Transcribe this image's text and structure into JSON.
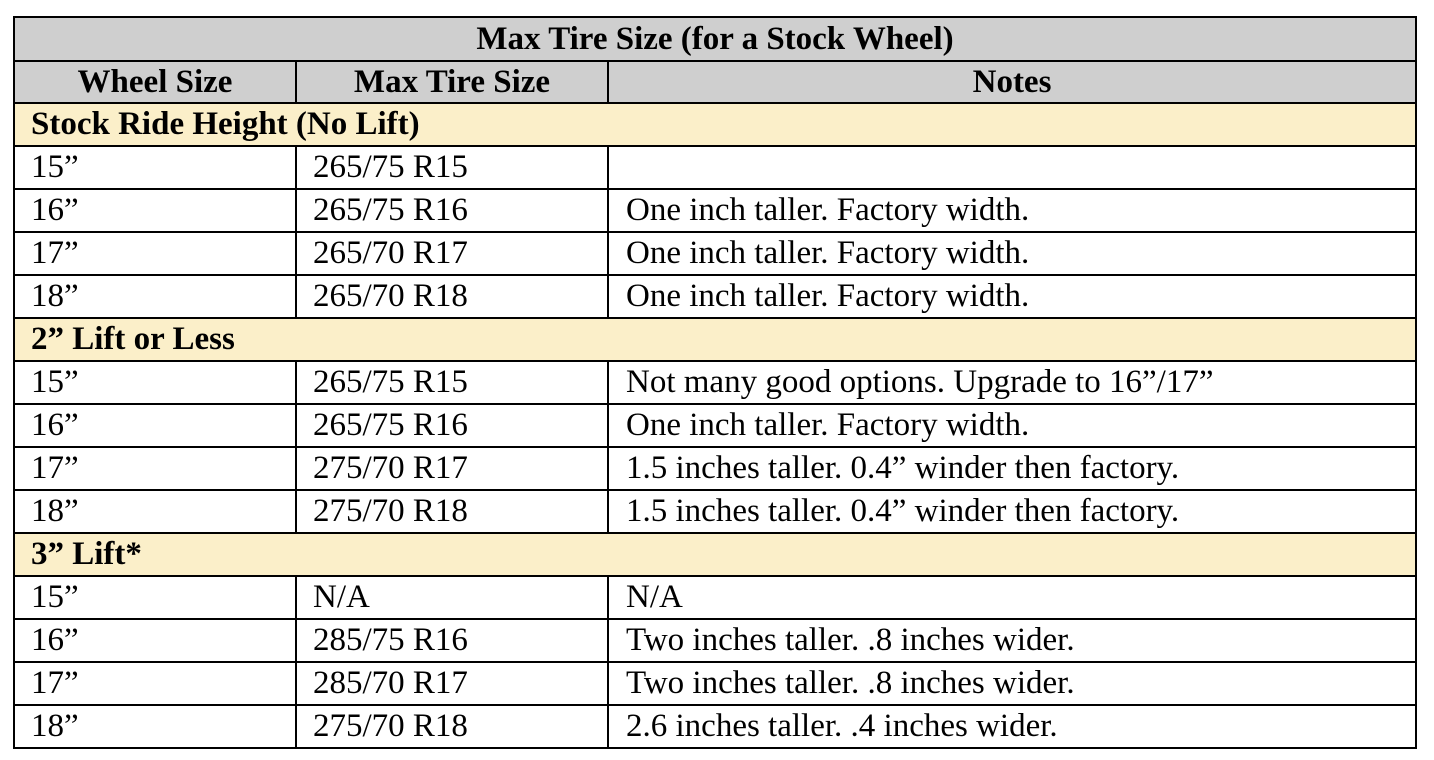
{
  "table": {
    "title": "Max Tire Size (for a Stock Wheel)",
    "headers": [
      "Wheel Size",
      "Max Tire Size",
      "Notes"
    ],
    "sections": [
      {
        "label": "Stock Ride Height (No Lift)",
        "rows": [
          {
            "wheel": "15”",
            "tire": "265/75 R15",
            "notes": ""
          },
          {
            "wheel": "16”",
            "tire": "265/75 R16",
            "notes": "One inch taller. Factory width."
          },
          {
            "wheel": "17”",
            "tire": "265/70 R17",
            "notes": "One inch taller. Factory width."
          },
          {
            "wheel": "18”",
            "tire": "265/70 R18",
            "notes": "One inch taller. Factory width."
          }
        ]
      },
      {
        "label": "2” Lift or Less",
        "rows": [
          {
            "wheel": "15”",
            "tire": "265/75 R15",
            "notes": "Not many good options. Upgrade to 16”/17”"
          },
          {
            "wheel": "16”",
            "tire": "265/75 R16",
            "notes": "One inch taller. Factory width."
          },
          {
            "wheel": "17”",
            "tire": "275/70 R17",
            "notes": "1.5 inches taller. 0.4” winder then factory."
          },
          {
            "wheel": "18”",
            "tire": "275/70 R18",
            "notes": "1.5 inches taller. 0.4” winder then factory."
          }
        ]
      },
      {
        "label": "3” Lift*",
        "rows": [
          {
            "wheel": "15”",
            "tire": "N/A",
            "notes": "N/A"
          },
          {
            "wheel": "16”",
            "tire": "285/75 R16",
            "notes": "Two inches taller. .8 inches wider."
          },
          {
            "wheel": "17”",
            "tire": "285/70 R17",
            "notes": "Two inches taller. .8 inches wider."
          },
          {
            "wheel": "18”",
            "tire": "275/70 R18",
            "notes": "2.6 inches taller. .4 inches wider."
          }
        ]
      }
    ]
  },
  "colors": {
    "header_bg": "#cfcfcf",
    "section_bg": "#fbefc9",
    "border": "#000000"
  }
}
